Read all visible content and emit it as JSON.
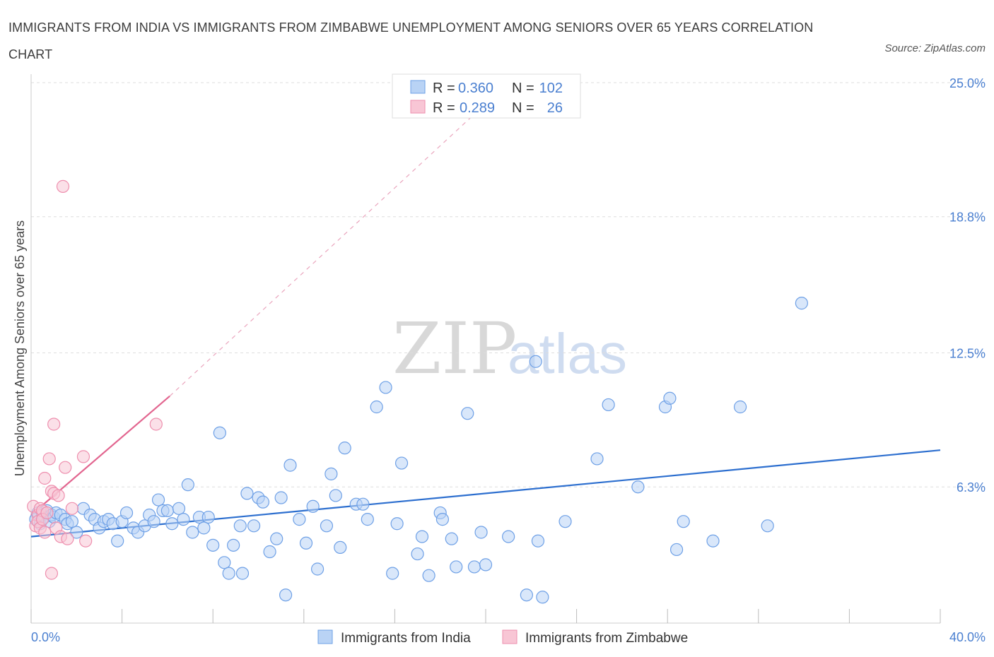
{
  "header": {
    "title": "IMMIGRANTS FROM INDIA VS IMMIGRANTS FROM ZIMBABWE UNEMPLOYMENT AMONG SENIORS OVER 65 YEARS CORRELATION CHART",
    "source": "Source: ZipAtlas.com"
  },
  "watermark": {
    "zip": "ZIP",
    "atlas": "atlas"
  },
  "legend_box": {
    "rows": [
      {
        "r_label": "R =",
        "r_value": "0.360",
        "n_label": "N =",
        "n_value": "102",
        "color": "#6ea0e6"
      },
      {
        "r_label": "R =",
        "r_value": "0.289",
        "n_label": "N =",
        "n_value": "26",
        "color": "#f08cad"
      }
    ]
  },
  "colors": {
    "india_fill": "#b9d3f5",
    "india_stroke": "#6ea0e6",
    "india_line": "#2d6fcf",
    "zimbabwe_fill": "#f8c6d5",
    "zimbabwe_stroke": "#ee8fae",
    "zimbabwe_line": "#e2658f",
    "tick_text": "#4a7fd0",
    "grid": "#dddddd"
  },
  "chart_data": {
    "type": "scatter",
    "title": "IMMIGRANTS FROM INDIA VS IMMIGRANTS FROM ZIMBABWE UNEMPLOYMENT AMONG SENIORS OVER 65 YEARS CORRELATION CHART",
    "xlabel": "",
    "ylabel": "Unemployment Among Seniors over 65 years",
    "xlim": [
      0,
      40
    ],
    "ylim": [
      0,
      25
    ],
    "x_tick_labels": [
      "0.0%",
      "40.0%"
    ],
    "y_ticks": [
      6.3,
      12.5,
      18.8,
      25.0
    ],
    "y_tick_labels": [
      "6.3%",
      "12.5%",
      "18.8%",
      "25.0%"
    ],
    "grid": "horizontal dashed",
    "legend_position": "bottom-center",
    "series": [
      {
        "name": "Immigrants from India",
        "R": 0.36,
        "N": 102,
        "trend": {
          "x": [
            0,
            40
          ],
          "y": [
            4.0,
            8.0
          ]
        },
        "points": [
          [
            0.2,
            4.8
          ],
          [
            0.3,
            5.1
          ],
          [
            0.4,
            4.6
          ],
          [
            0.5,
            5.0
          ],
          [
            0.6,
            4.9
          ],
          [
            0.7,
            5.2
          ],
          [
            0.8,
            4.7
          ],
          [
            0.9,
            5.0
          ],
          [
            1.0,
            4.9
          ],
          [
            1.1,
            5.1
          ],
          [
            1.3,
            5.0
          ],
          [
            1.5,
            4.8
          ],
          [
            1.6,
            4.6
          ],
          [
            1.8,
            4.7
          ],
          [
            2.0,
            4.2
          ],
          [
            2.3,
            5.3
          ],
          [
            2.6,
            5.0
          ],
          [
            2.8,
            4.8
          ],
          [
            3.0,
            4.4
          ],
          [
            3.2,
            4.7
          ],
          [
            3.4,
            4.8
          ],
          [
            3.6,
            4.6
          ],
          [
            3.8,
            3.8
          ],
          [
            4.0,
            4.7
          ],
          [
            4.2,
            5.1
          ],
          [
            4.5,
            4.4
          ],
          [
            4.7,
            4.2
          ],
          [
            5.0,
            4.5
          ],
          [
            5.2,
            5.0
          ],
          [
            5.4,
            4.7
          ],
          [
            5.6,
            5.7
          ],
          [
            5.8,
            5.2
          ],
          [
            6.0,
            5.2
          ],
          [
            6.2,
            4.6
          ],
          [
            6.5,
            5.3
          ],
          [
            6.7,
            4.8
          ],
          [
            6.9,
            6.4
          ],
          [
            7.1,
            4.2
          ],
          [
            7.4,
            4.9
          ],
          [
            7.6,
            4.4
          ],
          [
            7.8,
            4.9
          ],
          [
            8.0,
            3.6
          ],
          [
            8.3,
            8.8
          ],
          [
            8.5,
            2.8
          ],
          [
            8.7,
            2.3
          ],
          [
            8.9,
            3.6
          ],
          [
            9.2,
            4.5
          ],
          [
            9.3,
            2.3
          ],
          [
            9.5,
            6.0
          ],
          [
            9.8,
            4.5
          ],
          [
            10.0,
            5.8
          ],
          [
            10.2,
            5.6
          ],
          [
            10.5,
            3.3
          ],
          [
            10.8,
            3.9
          ],
          [
            11.0,
            5.8
          ],
          [
            11.2,
            1.3
          ],
          [
            11.4,
            7.3
          ],
          [
            11.8,
            4.8
          ],
          [
            12.1,
            3.7
          ],
          [
            12.4,
            5.4
          ],
          [
            12.6,
            2.5
          ],
          [
            13.0,
            4.5
          ],
          [
            13.2,
            6.9
          ],
          [
            13.4,
            5.9
          ],
          [
            13.6,
            3.5
          ],
          [
            13.8,
            8.1
          ],
          [
            14.3,
            5.5
          ],
          [
            14.6,
            5.5
          ],
          [
            14.8,
            4.8
          ],
          [
            15.2,
            10.0
          ],
          [
            15.6,
            10.9
          ],
          [
            15.9,
            2.3
          ],
          [
            16.1,
            4.6
          ],
          [
            16.3,
            7.4
          ],
          [
            17.0,
            3.2
          ],
          [
            17.2,
            4.0
          ],
          [
            17.5,
            2.2
          ],
          [
            18.0,
            5.1
          ],
          [
            18.1,
            4.8
          ],
          [
            18.5,
            3.9
          ],
          [
            18.7,
            2.6
          ],
          [
            19.2,
            9.7
          ],
          [
            19.5,
            2.6
          ],
          [
            19.8,
            4.2
          ],
          [
            20.0,
            2.7
          ],
          [
            21.0,
            4.0
          ],
          [
            21.8,
            1.3
          ],
          [
            22.2,
            12.1
          ],
          [
            22.3,
            3.8
          ],
          [
            22.5,
            1.2
          ],
          [
            23.5,
            4.7
          ],
          [
            24.9,
            7.6
          ],
          [
            25.4,
            10.1
          ],
          [
            26.7,
            6.3
          ],
          [
            27.9,
            10.0
          ],
          [
            28.1,
            10.4
          ],
          [
            28.4,
            3.4
          ],
          [
            28.7,
            4.7
          ],
          [
            30.0,
            3.8
          ],
          [
            31.2,
            10.0
          ],
          [
            32.4,
            4.5
          ],
          [
            33.9,
            14.8
          ]
        ]
      },
      {
        "name": "Immigrants from Zimbabwe",
        "R": 0.289,
        "N": 26,
        "trend": {
          "x": [
            0,
            6.1
          ],
          "y": [
            5.0,
            10.5
          ],
          "dashed_extension_to": [
            21.0,
            25.0
          ]
        },
        "points": [
          [
            0.1,
            5.4
          ],
          [
            0.2,
            4.5
          ],
          [
            0.3,
            5.0
          ],
          [
            0.3,
            4.7
          ],
          [
            0.4,
            5.3
          ],
          [
            0.4,
            4.4
          ],
          [
            0.5,
            5.2
          ],
          [
            0.5,
            4.8
          ],
          [
            0.6,
            6.7
          ],
          [
            0.6,
            4.2
          ],
          [
            0.7,
            5.1
          ],
          [
            0.8,
            7.6
          ],
          [
            0.9,
            6.1
          ],
          [
            0.9,
            2.3
          ],
          [
            1.0,
            9.2
          ],
          [
            1.0,
            6.0
          ],
          [
            1.1,
            4.4
          ],
          [
            1.2,
            5.9
          ],
          [
            1.3,
            4.0
          ],
          [
            1.4,
            20.2
          ],
          [
            1.5,
            7.2
          ],
          [
            1.6,
            3.9
          ],
          [
            2.3,
            7.7
          ],
          [
            2.4,
            3.8
          ],
          [
            5.5,
            9.2
          ],
          [
            1.8,
            5.3
          ]
        ]
      }
    ]
  },
  "bottom_legend": {
    "items": [
      {
        "label": "Immigrants from India",
        "color": "#6ea0e6"
      },
      {
        "label": "Immigrants from Zimbabwe",
        "color": "#ee8fae"
      }
    ]
  }
}
